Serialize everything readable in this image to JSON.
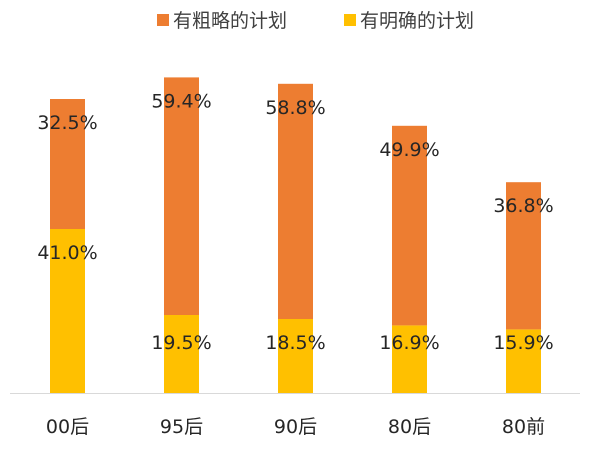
{
  "chart_data": {
    "type": "bar",
    "stacked": true,
    "categories": [
      "00后",
      "95后",
      "90后",
      "80后",
      "80前"
    ],
    "series": [
      {
        "name": "有明确的计划",
        "values": [
          41.0,
          19.5,
          18.5,
          16.9,
          15.9
        ],
        "labels": [
          "41.0%",
          "19.5%",
          "18.5%",
          "16.9%",
          "15.9%"
        ],
        "color": "#FFC000"
      },
      {
        "name": "有粗略的计划",
        "values": [
          32.5,
          59.4,
          58.8,
          49.9,
          36.8
        ],
        "labels": [
          "32.5%",
          "59.4%",
          "58.8%",
          "49.9%",
          "36.8%"
        ],
        "color": "#ED7D31"
      }
    ],
    "legend_order": [
      "有粗略的计划",
      "有明确的计划"
    ],
    "legend_position": "top",
    "ylim": [
      0,
      85
    ],
    "grid": false,
    "title": "",
    "xlabel": "",
    "ylabel": ""
  },
  "colors": {
    "axis": "#D9D9D9",
    "text": "#262626"
  }
}
